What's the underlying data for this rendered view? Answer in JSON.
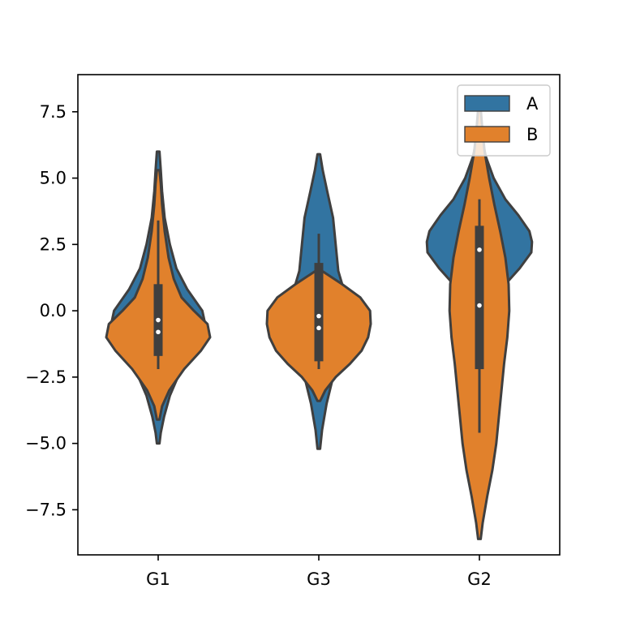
{
  "chart_data": {
    "type": "violin",
    "title": "",
    "xlabel": "",
    "ylabel": "",
    "categories": [
      "G1",
      "G3",
      "G2"
    ],
    "ylim": [
      -9.2,
      8.9
    ],
    "yticks": [
      -7.5,
      -5.0,
      -2.5,
      0.0,
      2.5,
      5.0,
      7.5
    ],
    "ytick_labels": [
      "−7.5",
      "−5.0",
      "−2.5",
      "0.0",
      "2.5",
      "5.0",
      "7.5"
    ],
    "grid": false,
    "legend": {
      "placement": "top-right",
      "entries": [
        "A",
        "B"
      ]
    },
    "colors": {
      "A": "#3274a1",
      "B": "#e1812c",
      "outline": "#3f3f3f",
      "box": "#3f3f3f",
      "median": "#ffffff"
    },
    "series": [
      {
        "name": "A",
        "violins": [
          {
            "category": "G1",
            "min": -5.0,
            "max": 6.0,
            "profile": [
              [
                -5.0,
                0.02
              ],
              [
                -4.6,
                0.04
              ],
              [
                -4.0,
                0.09
              ],
              [
                -3.2,
                0.18
              ],
              [
                -2.4,
                0.32
              ],
              [
                -1.6,
                0.55
              ],
              [
                -0.8,
                0.75
              ],
              [
                0.0,
                0.68
              ],
              [
                0.8,
                0.45
              ],
              [
                1.6,
                0.28
              ],
              [
                2.5,
                0.18
              ],
              [
                3.5,
                0.1
              ],
              [
                4.5,
                0.06
              ],
              [
                5.3,
                0.04
              ],
              [
                6.0,
                0.02
              ]
            ],
            "box": {
              "q1": -1.7,
              "q3": 1.0,
              "whisker_low": -2.2,
              "whisker_high": 3.4,
              "median": -0.35
            }
          },
          {
            "category": "G3",
            "min": -5.2,
            "max": 5.9,
            "profile": [
              [
                -5.2,
                0.02
              ],
              [
                -4.5,
                0.05
              ],
              [
                -3.5,
                0.12
              ],
              [
                -2.5,
                0.22
              ],
              [
                -1.5,
                0.38
              ],
              [
                -0.5,
                0.5
              ],
              [
                0.5,
                0.42
              ],
              [
                1.5,
                0.3
              ],
              [
                2.5,
                0.26
              ],
              [
                3.5,
                0.22
              ],
              [
                4.5,
                0.13
              ],
              [
                5.3,
                0.06
              ],
              [
                5.9,
                0.02
              ]
            ],
            "box": {
              "q1": -1.9,
              "q3": 1.8,
              "whisker_low": -2.2,
              "whisker_high": 2.9,
              "median": -0.2
            }
          },
          {
            "category": "G2",
            "min": 0.0,
            "max": 7.0,
            "profile": [
              [
                0.0,
                0.35
              ],
              [
                0.5,
                0.3
              ],
              [
                1.0,
                0.4
              ],
              [
                1.6,
                0.62
              ],
              [
                2.2,
                0.8
              ],
              [
                2.6,
                0.81
              ],
              [
                3.0,
                0.77
              ],
              [
                3.6,
                0.6
              ],
              [
                4.2,
                0.4
              ],
              [
                5.0,
                0.22
              ],
              [
                5.8,
                0.1
              ],
              [
                6.5,
                0.04
              ],
              [
                7.0,
                0.02
              ]
            ],
            "box": {
              "q1": 0.2,
              "q3": 3.2,
              "whisker_low": -2.2,
              "whisker_high": 4.2,
              "median": 2.3
            }
          }
        ]
      },
      {
        "name": "B",
        "violins": [
          {
            "category": "G1",
            "min": -4.1,
            "max": 5.3,
            "profile": [
              [
                -4.1,
                0.02
              ],
              [
                -3.6,
                0.06
              ],
              [
                -3.0,
                0.17
              ],
              [
                -2.2,
                0.4
              ],
              [
                -1.5,
                0.66
              ],
              [
                -1.0,
                0.8
              ],
              [
                -0.5,
                0.76
              ],
              [
                0.0,
                0.55
              ],
              [
                0.5,
                0.36
              ],
              [
                1.2,
                0.24
              ],
              [
                2.0,
                0.16
              ],
              [
                3.0,
                0.1
              ],
              [
                4.0,
                0.06
              ],
              [
                4.8,
                0.04
              ],
              [
                5.3,
                0.02
              ]
            ],
            "box": {
              "q1": -1.7,
              "q3": 1.0,
              "whisker_low": -2.2,
              "whisker_high": 3.4,
              "median": -0.8
            }
          },
          {
            "category": "G3",
            "min": -3.4,
            "max": 1.5,
            "profile": [
              [
                -3.4,
                0.02
              ],
              [
                -3.0,
                0.1
              ],
              [
                -2.5,
                0.26
              ],
              [
                -2.0,
                0.48
              ],
              [
                -1.5,
                0.66
              ],
              [
                -1.0,
                0.76
              ],
              [
                -0.5,
                0.8
              ],
              [
                0.0,
                0.79
              ],
              [
                0.5,
                0.64
              ],
              [
                1.0,
                0.36
              ],
              [
                1.5,
                0.05
              ]
            ],
            "box": {
              "q1": -1.9,
              "q3": 1.8,
              "whisker_low": -2.2,
              "whisker_high": 2.9,
              "median": -0.65
            }
          },
          {
            "category": "G2",
            "min": -8.6,
            "max": 7.9,
            "profile": [
              [
                -8.6,
                0.02
              ],
              [
                -8.0,
                0.05
              ],
              [
                -7.0,
                0.12
              ],
              [
                -6.0,
                0.2
              ],
              [
                -5.0,
                0.26
              ],
              [
                -4.0,
                0.3
              ],
              [
                -3.0,
                0.34
              ],
              [
                -2.0,
                0.38
              ],
              [
                -1.0,
                0.43
              ],
              [
                0.0,
                0.46
              ],
              [
                1.0,
                0.45
              ],
              [
                2.0,
                0.4
              ],
              [
                3.0,
                0.32
              ],
              [
                4.0,
                0.23
              ],
              [
                5.0,
                0.15
              ],
              [
                6.0,
                0.08
              ],
              [
                7.0,
                0.04
              ],
              [
                7.9,
                0.01
              ]
            ],
            "box": {
              "q1": -2.2,
              "q3": 3.2,
              "whisker_low": -4.6,
              "whisker_high": 4.2,
              "median": 0.2
            }
          }
        ]
      }
    ]
  }
}
